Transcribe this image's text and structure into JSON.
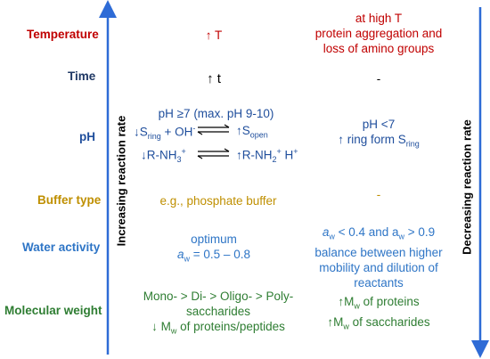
{
  "colors": {
    "temperature": "#c00000",
    "time": "#1f3864",
    "ph": "#1f4e9c",
    "buffer": "#bf8f00",
    "water": "#2e75c6",
    "molecular": "#2e7d32",
    "arrow": "#2e6bd6",
    "black": "#000000"
  },
  "axes": {
    "left": "Increasing reaction rate",
    "right": "Decreasing reaction rate"
  },
  "rows": {
    "temperature": {
      "label": "Temperature",
      "increase": "↑ T",
      "decrease": [
        "at high T",
        "protein aggregation and",
        "loss of amino groups"
      ]
    },
    "time": {
      "label": "Time",
      "increase": "↑ t",
      "decrease": "-"
    },
    "ph": {
      "label": "pH",
      "increase_title": "pH ≥7 (max. pH 9-10)",
      "eq1_left": "↓S",
      "eq1_left_sub": "ring",
      "eq1_left_rest": " + OH",
      "eq1_left_sup": "-",
      "eq1_right": "↑S",
      "eq1_right_sub": "open",
      "eq2_left": "↓R-NH",
      "eq2_left_sub": "3",
      "eq2_left_sup": "+",
      "eq2_right": "↑R-NH",
      "eq2_right_sub": "2",
      "eq2_right_sup": "+",
      "eq2_right_rest": " H",
      "eq2_right_sup2": "+",
      "decrease_line1": "pH <7",
      "decrease_line2": "↑ ring form S",
      "decrease_line2_sub": "ring"
    },
    "buffer": {
      "label": "Buffer type",
      "increase": "e.g., phosphate buffer",
      "decrease": "-"
    },
    "water": {
      "label": "Water activity",
      "increase_line1": "optimum",
      "increase_a": "a",
      "increase_a_sub": "w",
      "increase_rest": " = 0.5 – 0.8",
      "decrease_a1": "a",
      "decrease_a1_sub": "w",
      "decrease_mid": " < 0.4 and a",
      "decrease_a2_sub": "w",
      "decrease_end": " > 0.9",
      "decrease_line2": "balance between higher",
      "decrease_line3": "mobility and dilution of",
      "decrease_line4": "reactants"
    },
    "molecular": {
      "label": "Molecular weight",
      "increase_line1": "Mono- > Di- > Oligo- > Poly-",
      "increase_line2": "saccharides",
      "increase_line3a": "↓ M",
      "increase_line3_sub": "w",
      "increase_line3b": " of proteins/peptides",
      "decrease_line1a": "↑M",
      "decrease_line1_sub": "w",
      "decrease_line1b": " of proteins",
      "decrease_line2a": "↑M",
      "decrease_line2_sub": "w",
      "decrease_line2b": " of saccharides"
    }
  }
}
